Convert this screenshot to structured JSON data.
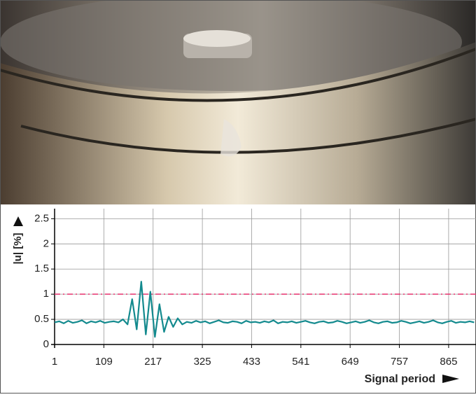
{
  "chart_data": {
    "type": "line",
    "ylabel": "|u| [%]",
    "xlabel": "Signal period",
    "x": [
      1,
      11,
      21,
      31,
      41,
      51,
      61,
      71,
      81,
      91,
      101,
      111,
      121,
      131,
      141,
      151,
      161,
      171,
      181,
      191,
      201,
      211,
      221,
      231,
      241,
      251,
      261,
      271,
      281,
      291,
      301,
      311,
      321,
      331,
      341,
      351,
      361,
      371,
      381,
      391,
      401,
      411,
      421,
      431,
      441,
      451,
      461,
      471,
      481,
      491,
      501,
      511,
      521,
      531,
      541,
      551,
      561,
      571,
      581,
      591,
      601,
      611,
      621,
      631,
      641,
      651,
      661,
      671,
      681,
      691,
      701,
      711,
      721,
      731,
      741,
      751,
      761,
      771,
      781,
      791,
      801,
      811,
      821,
      831,
      841,
      851,
      861,
      871,
      881,
      891,
      901,
      911,
      921
    ],
    "series": [
      {
        "color": "#138a8e",
        "values": [
          0.44,
          0.46,
          0.42,
          0.47,
          0.43,
          0.45,
          0.48,
          0.42,
          0.46,
          0.44,
          0.47,
          0.43,
          0.45,
          0.46,
          0.44,
          0.5,
          0.4,
          0.9,
          0.3,
          1.25,
          0.2,
          1.05,
          0.15,
          0.8,
          0.25,
          0.55,
          0.35,
          0.52,
          0.4,
          0.45,
          0.43,
          0.47,
          0.44,
          0.46,
          0.42,
          0.45,
          0.48,
          0.44,
          0.43,
          0.46,
          0.45,
          0.42,
          0.47,
          0.44,
          0.45,
          0.43,
          0.46,
          0.44,
          0.48,
          0.42,
          0.45,
          0.44,
          0.46,
          0.43,
          0.45,
          0.47,
          0.44,
          0.42,
          0.45,
          0.46,
          0.43,
          0.44,
          0.47,
          0.45,
          0.42,
          0.44,
          0.46,
          0.43,
          0.45,
          0.48,
          0.44,
          0.42,
          0.45,
          0.46,
          0.43,
          0.44,
          0.47,
          0.45,
          0.42,
          0.44,
          0.46,
          0.43,
          0.45,
          0.48,
          0.44,
          0.42,
          0.45,
          0.47,
          0.43,
          0.45,
          0.44,
          0.46,
          0.44
        ]
      }
    ],
    "reference_line": {
      "value": 1,
      "color": "#e8326e"
    },
    "xlim": [
      1,
      925
    ],
    "ylim": [
      0,
      2.7
    ],
    "xticks": [
      1,
      109,
      217,
      325,
      433,
      541,
      649,
      757,
      865
    ],
    "yticks": [
      0,
      0.5,
      1,
      1.5,
      2,
      2.5
    ],
    "grid": true
  }
}
